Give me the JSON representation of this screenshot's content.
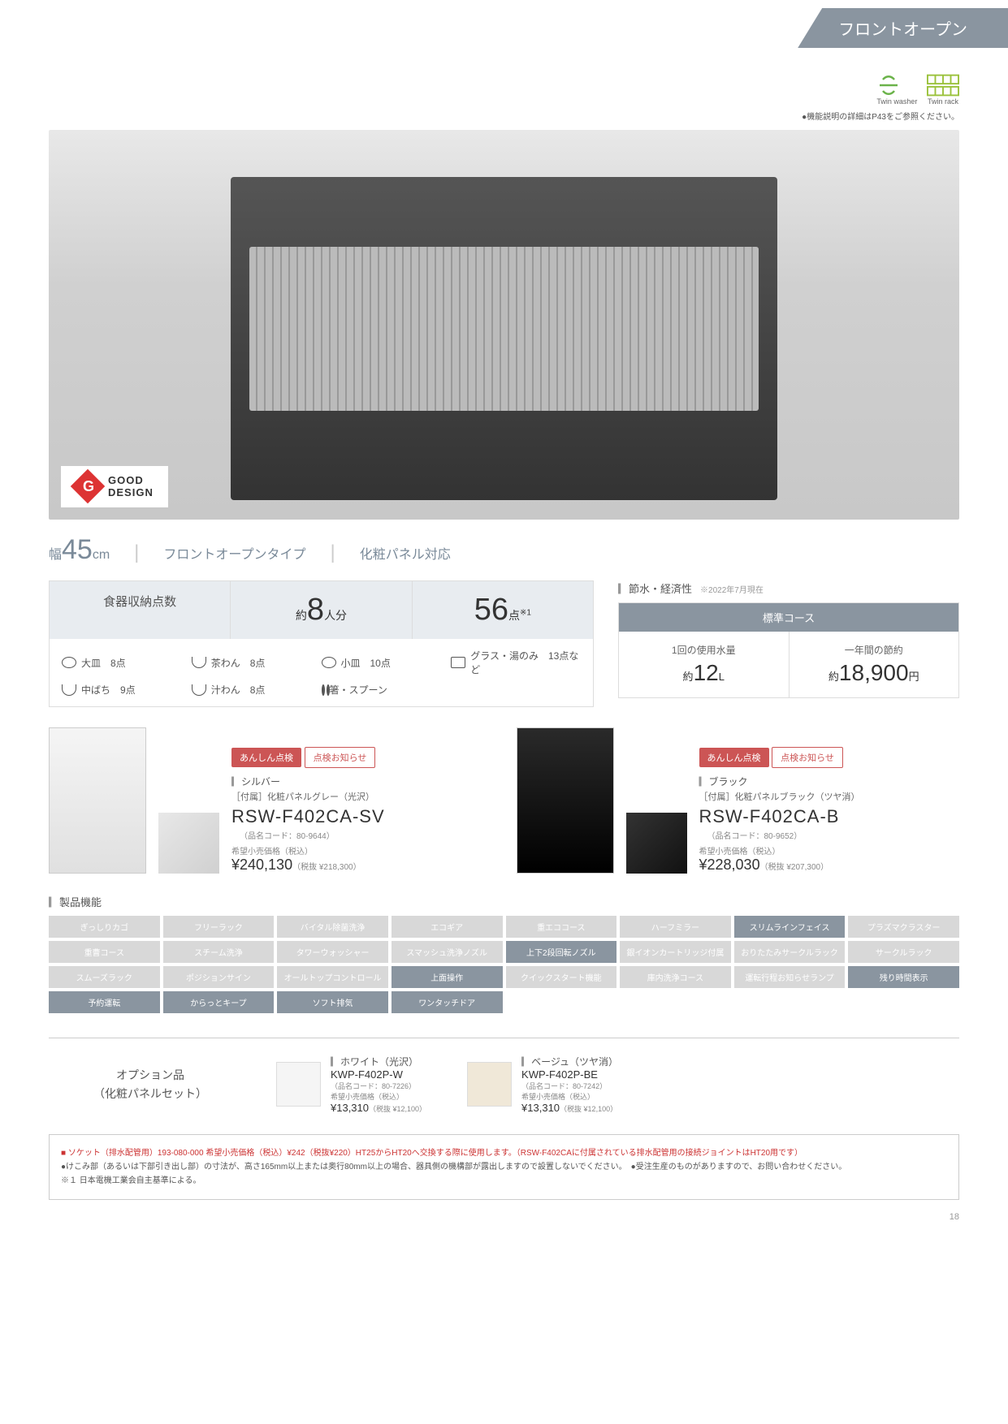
{
  "tab_label": "フロントオープン",
  "icons": {
    "twin_washer": "Twin washer",
    "twin_rack": "Twin rack"
  },
  "note_p43": "●機能説明の詳細はP43をご参照ください。",
  "good_design": {
    "line1": "GOOD",
    "line2": "DESIGN"
  },
  "spec": {
    "width_prefix": "幅",
    "width_value": "45",
    "width_unit": "cm",
    "type": "フロントオープンタイプ",
    "panel": "化粧パネル対応"
  },
  "capacity": {
    "title": "食器収納点数",
    "people_prefix": "約",
    "people_value": "8",
    "people_suffix": "人分",
    "items_value": "56",
    "items_suffix": "点",
    "items_note": "※1"
  },
  "dishes": [
    {
      "name": "大皿",
      "count": "8点",
      "ic": "circle"
    },
    {
      "name": "茶わん",
      "count": "8点",
      "ic": "bowl"
    },
    {
      "name": "小皿",
      "count": "10点",
      "ic": "circle"
    },
    {
      "name": "グラス・湯のみ",
      "count": "13点など",
      "ic": "rect"
    },
    {
      "name": "中ばち",
      "count": "9点",
      "ic": "bowl"
    },
    {
      "name": "汁わん",
      "count": "8点",
      "ic": "bowl"
    },
    {
      "name": "箸・スプーン",
      "count": "",
      "ic": "dots"
    }
  ],
  "eco": {
    "header": "節水・経済性",
    "date": "※2022年7月現在",
    "course": "標準コース",
    "water_label": "1回の使用水量",
    "water_prefix": "約",
    "water_value": "12",
    "water_unit": "L",
    "save_label": "一年間の節約",
    "save_prefix": "約",
    "save_value": "18,900",
    "save_unit": "円"
  },
  "badges": {
    "anshin": "あんしん点検",
    "tenken": "点検お知らせ"
  },
  "products": [
    {
      "color": "シルバー",
      "attr": "［付属］化粧パネルグレー（光沢）",
      "model": "RSW-F402CA-SV",
      "code": "（品名コード：80-9644）",
      "price_label": "希望小売価格（税込）",
      "price": "¥240,130",
      "tax": "（税抜 ¥218,300）",
      "black": false
    },
    {
      "color": "ブラック",
      "attr": "［付属］化粧パネルブラック（ツヤ消）",
      "model": "RSW-F402CA-B",
      "code": "（品名コード：80-9652）",
      "price_label": "希望小売価格（税込）",
      "price": "¥228,030",
      "tax": "（税抜 ¥207,300）",
      "black": true
    }
  ],
  "features_header": "製品機能",
  "features": [
    {
      "t": "ぎっしりカゴ",
      "on": false
    },
    {
      "t": "フリーラック",
      "on": false
    },
    {
      "t": "バイタル除菌洗浄",
      "on": false
    },
    {
      "t": "エコギア",
      "on": false
    },
    {
      "t": "重エココース",
      "on": false
    },
    {
      "t": "ハーフミラー",
      "on": false
    },
    {
      "t": "スリムラインフェイス",
      "on": true
    },
    {
      "t": "プラズマクラスター",
      "on": false
    },
    {
      "t": "重曹コース",
      "on": false
    },
    {
      "t": "スチーム洗浄",
      "on": false
    },
    {
      "t": "タワーウォッシャー",
      "on": false
    },
    {
      "t": "スマッシュ洗浄ノズル",
      "on": false
    },
    {
      "t": "上下2段回転ノズル",
      "on": true
    },
    {
      "t": "銀イオンカートリッジ付属",
      "on": false
    },
    {
      "t": "おりたたみサークルラック",
      "on": false
    },
    {
      "t": "サークルラック",
      "on": false
    },
    {
      "t": "スムーズラック",
      "on": false
    },
    {
      "t": "ポジションサイン",
      "on": false
    },
    {
      "t": "オールトップコントロール",
      "on": false
    },
    {
      "t": "上面操作",
      "on": true
    },
    {
      "t": "クイックスタート機能",
      "on": false
    },
    {
      "t": "庫内洗浄コース",
      "on": false
    },
    {
      "t": "運転行程お知らせランプ",
      "on": false
    },
    {
      "t": "残り時間表示",
      "on": true
    },
    {
      "t": "予約運転",
      "on": true
    },
    {
      "t": "からっとキープ",
      "on": true
    },
    {
      "t": "ソフト排気",
      "on": true
    },
    {
      "t": "ワンタッチドア",
      "on": true
    }
  ],
  "options": {
    "title_l1": "オプション品",
    "title_l2": "（化粧パネルセット）",
    "items": [
      {
        "name": "ホワイト（光沢）",
        "model": "KWP-F402P-W",
        "code": "（品名コード：80-7226）",
        "price_label": "希望小売価格（税込）",
        "price": "¥13,310",
        "tax": "（税抜 ¥12,100）",
        "beige": false
      },
      {
        "name": "ベージュ（ツヤ消）",
        "model": "KWP-F402P-BE",
        "code": "（品名コード：80-7242）",
        "price_label": "希望小売価格（税込）",
        "price": "¥13,310",
        "tax": "（税抜 ¥12,100）",
        "beige": true
      }
    ]
  },
  "footnotes": {
    "socket": "ソケット（排水配管用）193-080-000 希望小売価格（税込）¥242（税抜¥220）HT25からHT20へ交換する際に使用します。（RSW-F402CAに付属されている排水配管用の接続ジョイントはHT20用です）",
    "note1": "●けこみ部（あるいは下部引き出し部）の寸法が、高さ165mm以上または奥行80mm以上の場合、器具側の機構部が露出しますので設置しないでください。　●受注生産のものがありますので、お問い合わせください。",
    "note2": "※１ 日本電機工業会自主基準による。"
  },
  "page_number": "18"
}
